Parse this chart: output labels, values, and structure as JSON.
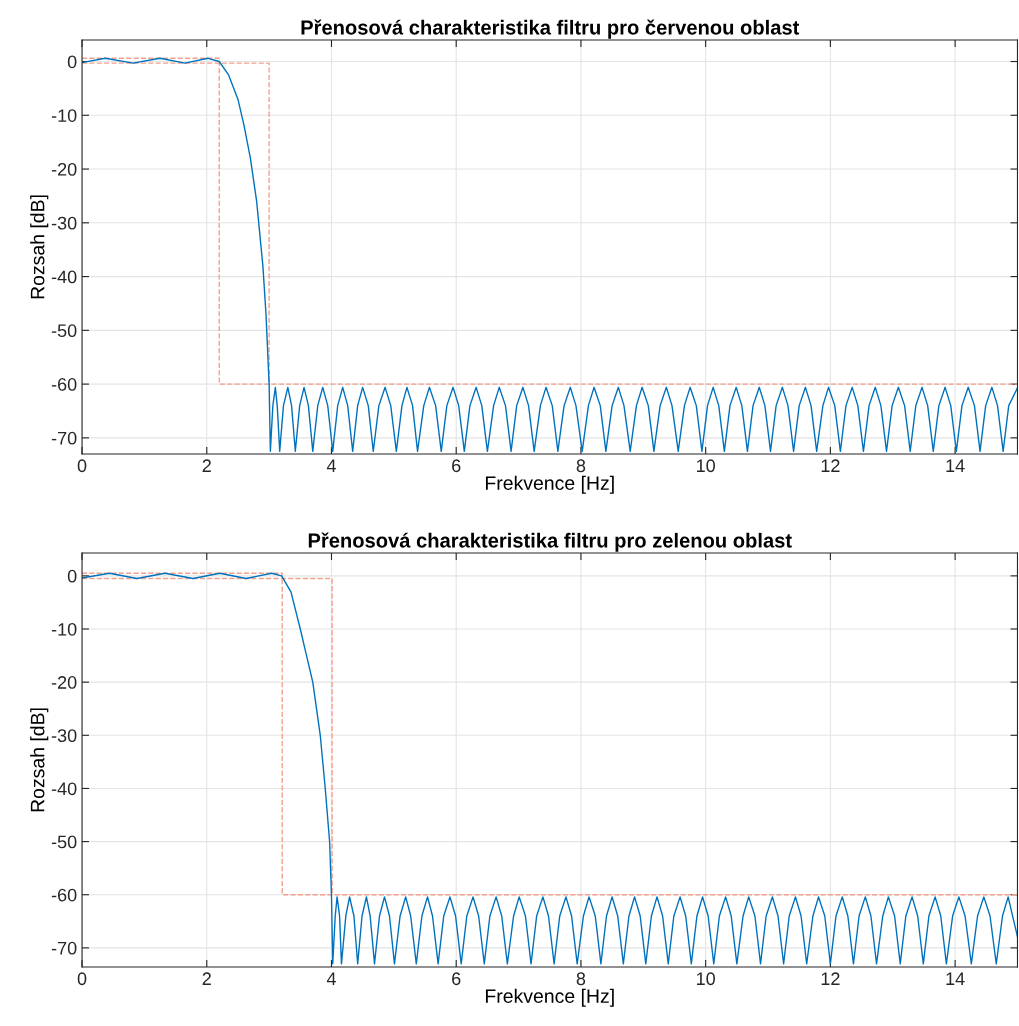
{
  "chart_data": [
    {
      "type": "line",
      "title": "Přenosová charakteristika filtru pro červenou oblast",
      "xlabel": "Frekvence [Hz]",
      "ylabel": "Rozsah [dB]",
      "xlim": [
        0,
        15
      ],
      "xticks": [
        0,
        2,
        4,
        6,
        8,
        10,
        12,
        14
      ],
      "ylim": [
        -73,
        4
      ],
      "yticks": [
        -70,
        -60,
        -50,
        -40,
        -30,
        -20,
        -10,
        0
      ],
      "grid": true,
      "series": [
        {
          "color": "#f4a08c",
          "line_style": "dashed",
          "x": [
            0,
            2.2,
            2.2,
            15
          ],
          "values": [
            0.6,
            0.6,
            -60,
            -60
          ]
        },
        {
          "color": "#f4a08c",
          "line_style": "dashed",
          "x": [
            0,
            3.0,
            3.0
          ],
          "values": [
            -0.3,
            -0.3,
            -60
          ]
        },
        {
          "color": "#0072bd",
          "line_style": "solid",
          "x": [
            0,
            0.37,
            0.82,
            1.25,
            1.65,
            2.02,
            2.2,
            2.35,
            2.5,
            2.6,
            2.7,
            2.8,
            2.9,
            2.95,
            3.0,
            3.02,
            3.06,
            3.1,
            3.13,
            3.17,
            3.23,
            3.3,
            3.36,
            3.42,
            3.49,
            3.56,
            3.63,
            3.7,
            3.78,
            3.86,
            3.94,
            4.02,
            4.1,
            4.18,
            4.26,
            4.34,
            4.42,
            4.5,
            4.59,
            4.67,
            4.76,
            4.86,
            4.95,
            5.04,
            5.13,
            5.21,
            5.3,
            5.38,
            5.48,
            5.57,
            5.67,
            5.76,
            5.85,
            5.95,
            6.04,
            6.13,
            6.22,
            6.32,
            6.41,
            6.5,
            6.6,
            6.69,
            6.79,
            6.88,
            6.97,
            7.07,
            7.16,
            7.25,
            7.35,
            7.44,
            7.54,
            7.63,
            7.73,
            7.83,
            7.92,
            8.02,
            8.12,
            8.21,
            8.31,
            8.4,
            8.5,
            8.6,
            8.69,
            8.79,
            8.89,
            8.98,
            9.08,
            9.17,
            9.27,
            9.37,
            9.46,
            9.56,
            9.66,
            9.75,
            9.85,
            9.94,
            10.03,
            10.12,
            10.21,
            10.3,
            10.39,
            10.49,
            10.58,
            10.67,
            10.76,
            10.86,
            10.95,
            11.04,
            11.13,
            11.23,
            11.32,
            11.41,
            11.5,
            11.6,
            11.69,
            11.78,
            11.88,
            11.97,
            12.07,
            12.16,
            12.25,
            12.35,
            12.44,
            12.53,
            12.62,
            12.72,
            12.81,
            12.9,
            12.99,
            13.09,
            13.19,
            13.28,
            13.37,
            13.47,
            13.56,
            13.65,
            13.74,
            13.84,
            13.93,
            14.02,
            14.11,
            14.21,
            14.31,
            14.4,
            14.49,
            14.59,
            14.68,
            14.77,
            14.86,
            15.0
          ],
          "values": [
            -0.2,
            0.6,
            -0.3,
            0.6,
            -0.3,
            0.6,
            0,
            -2.5,
            -7,
            -12,
            -18,
            -26,
            -38,
            -47,
            -60,
            -72.5,
            -64,
            -60.6,
            -64,
            -72.5,
            -64,
            -60.6,
            -64,
            -72.5,
            -64,
            -60.6,
            -64,
            -72.5,
            -64,
            -60.6,
            -64,
            -72.5,
            -64,
            -60.6,
            -64,
            -72.5,
            -64,
            -60.6,
            -64,
            -72.5,
            -64,
            -60.6,
            -64,
            -72.5,
            -64,
            -60.6,
            -64,
            -72.5,
            -64,
            -60.6,
            -64,
            -72.5,
            -64,
            -60.6,
            -64,
            -72.5,
            -64,
            -60.6,
            -64,
            -72.5,
            -64,
            -60.6,
            -64,
            -72.5,
            -64,
            -60.6,
            -64,
            -72.5,
            -64,
            -60.6,
            -64,
            -72.5,
            -64,
            -60.6,
            -64,
            -72.5,
            -64,
            -60.6,
            -64,
            -72.5,
            -64,
            -60.6,
            -64,
            -72.5,
            -64,
            -60.6,
            -64,
            -72.5,
            -64,
            -60.6,
            -64,
            -72.5,
            -64,
            -60.6,
            -64,
            -72.5,
            -64,
            -60.6,
            -64,
            -72.5,
            -64,
            -60.6,
            -64,
            -72.5,
            -64,
            -60.6,
            -64,
            -72.5,
            -64,
            -60.6,
            -64,
            -72.5,
            -64,
            -60.6,
            -64,
            -72.5,
            -64,
            -60.6,
            -64,
            -72.5,
            -64,
            -60.6,
            -64,
            -72.5,
            -64,
            -60.6,
            -64,
            -72.5,
            -64,
            -60.6,
            -64,
            -72.5,
            -64,
            -60.6,
            -64,
            -72.5,
            -64,
            -60.6,
            -64,
            -72.5,
            -64,
            -60.6,
            -64,
            -72.5,
            -64,
            -60.6,
            -64,
            -72.5,
            -64,
            -60.7
          ]
        }
      ]
    },
    {
      "type": "line",
      "title": "Přenosová charakteristika filtru pro zelenou oblast",
      "xlabel": "Frekvence [Hz]",
      "ylabel": "Rozsah [dB]",
      "xlim": [
        0,
        15
      ],
      "xticks": [
        0,
        2,
        4,
        6,
        8,
        10,
        12,
        14
      ],
      "ylim": [
        -73.6,
        4.3
      ],
      "yticks": [
        -70,
        -60,
        -50,
        -40,
        -30,
        -20,
        -10,
        0
      ],
      "grid": true,
      "series": [
        {
          "color": "#f4a08c",
          "line_style": "dashed",
          "x": [
            0,
            3.21,
            3.21,
            15
          ],
          "values": [
            0.5,
            0.5,
            -60,
            -60
          ]
        },
        {
          "color": "#f4a08c",
          "line_style": "dashed",
          "x": [
            0,
            4.01,
            4.01
          ],
          "values": [
            -0.5,
            -0.5,
            -60
          ]
        },
        {
          "color": "#0072bd",
          "line_style": "solid",
          "x": [
            0,
            0.44,
            0.88,
            1.33,
            1.78,
            2.21,
            2.63,
            3.04,
            3.2,
            3.35,
            3.5,
            3.6,
            3.7,
            3.82,
            3.9,
            3.97,
            4.0,
            4.02,
            4.06,
            4.09,
            4.13,
            4.16,
            4.23,
            4.29,
            4.36,
            4.42,
            4.49,
            4.56,
            4.62,
            4.69,
            4.77,
            4.85,
            4.93,
            5.01,
            5.1,
            5.19,
            5.27,
            5.36,
            5.45,
            5.54,
            5.62,
            5.71,
            5.8,
            5.9,
            5.99,
            6.08,
            6.17,
            6.27,
            6.36,
            6.45,
            6.54,
            6.64,
            6.73,
            6.82,
            6.92,
            7.01,
            7.11,
            7.2,
            7.29,
            7.39,
            7.48,
            7.57,
            7.66,
            7.76,
            7.85,
            7.94,
            8.04,
            8.13,
            8.23,
            8.32,
            8.41,
            8.5,
            8.59,
            8.68,
            8.77,
            8.86,
            8.95,
            9.04,
            9.13,
            9.22,
            9.31,
            9.4,
            9.49,
            9.59,
            9.68,
            9.77,
            9.86,
            9.95,
            10.04,
            10.13,
            10.22,
            10.32,
            10.41,
            10.5,
            10.6,
            10.69,
            10.79,
            10.88,
            10.97,
            11.07,
            11.16,
            11.25,
            11.34,
            11.44,
            11.53,
            11.62,
            11.72,
            11.81,
            11.91,
            12.0,
            12.09,
            12.19,
            12.28,
            12.37,
            12.46,
            12.56,
            12.65,
            12.74,
            12.84,
            12.93,
            13.03,
            13.12,
            13.21,
            13.31,
            13.4,
            13.49,
            13.58,
            13.68,
            13.77,
            13.86,
            13.96,
            14.06,
            14.16,
            14.26,
            14.36,
            14.46,
            14.56,
            14.66,
            14.76,
            14.85,
            15.0
          ],
          "values": [
            -0.4,
            0.5,
            -0.5,
            0.5,
            -0.5,
            0.5,
            -0.5,
            0.5,
            0,
            -3,
            -10,
            -15,
            -20,
            -30,
            -40,
            -50,
            -60,
            -73,
            -64,
            -60.4,
            -64,
            -73,
            -64,
            -60.4,
            -64,
            -73,
            -64,
            -60.4,
            -64,
            -73,
            -64,
            -60.4,
            -64,
            -73,
            -64,
            -60.4,
            -64,
            -73,
            -64,
            -60.4,
            -64,
            -73,
            -64,
            -60.4,
            -64,
            -73,
            -64,
            -60.4,
            -64,
            -73,
            -64,
            -60.4,
            -64,
            -73,
            -64,
            -60.4,
            -64,
            -73,
            -64,
            -60.4,
            -64,
            -73,
            -64,
            -60.4,
            -64,
            -73,
            -64,
            -60.4,
            -64,
            -73,
            -64,
            -60.4,
            -64,
            -73,
            -64,
            -60.4,
            -64,
            -73,
            -64,
            -60.4,
            -64,
            -73,
            -64,
            -60.4,
            -64,
            -73,
            -64,
            -60.4,
            -64,
            -73,
            -64,
            -60.4,
            -64,
            -73,
            -64,
            -60.4,
            -64,
            -73,
            -64,
            -60.4,
            -64,
            -73,
            -64,
            -60.4,
            -64,
            -73,
            -64,
            -60.4,
            -64,
            -73,
            -64,
            -60.4,
            -64,
            -73,
            -64,
            -60.4,
            -64,
            -73,
            -64,
            -60.4,
            -64,
            -73,
            -64,
            -60.4,
            -64,
            -73,
            -64,
            -60.4,
            -64,
            -73,
            -64,
            -60.4,
            -64,
            -73,
            -64,
            -60.4,
            -64,
            -73,
            -64,
            -60.4,
            -67.9
          ]
        }
      ]
    }
  ]
}
